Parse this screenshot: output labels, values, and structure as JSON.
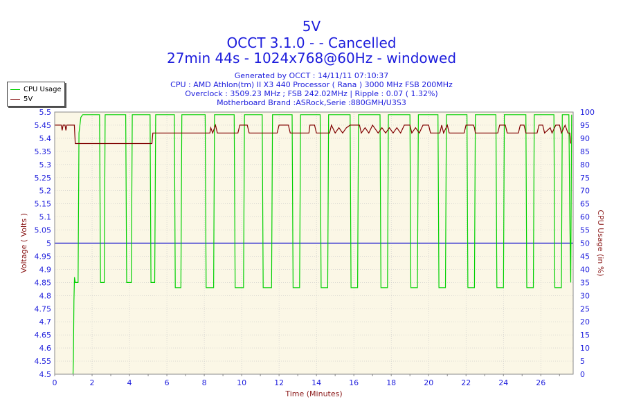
{
  "header": {
    "title": "5V",
    "subtitle1": "OCCT 3.1.0 -  - Cancelled",
    "subtitle2": "27min 44s - 1024x768@60Hz - windowed",
    "info": [
      "Generated by OCCT : 14/11/11 07:10:37",
      "CPU : AMD Athlon(tm) II X3 440 Processor ( Rana ) 3000 MHz FSB 200MHz",
      "Overclock : 3509.23 MHz ; FSB 242.02MHz | Ripple : 0.07 ( 1.32%)",
      "Motherboard Brand :ASRock,Serie :880GMH/U3S3"
    ]
  },
  "legend": [
    {
      "label": "CPU Usage",
      "color": "#00d000"
    },
    {
      "label": "5V",
      "color": "#800000"
    }
  ],
  "chart_data": {
    "type": "line",
    "xlabel": "Time (Minutes)",
    "ylabel": "Voltage ( Volts )",
    "y2label": "CPU Usage (in %)",
    "xlim": [
      0,
      27.73
    ],
    "ylim": [
      4.5,
      5.5
    ],
    "y2lim": [
      0,
      100
    ],
    "x_ticks": [
      "0",
      "2",
      "4",
      "6",
      "8",
      "10",
      "12",
      "14",
      "16",
      "18",
      "20",
      "22",
      "24",
      "26"
    ],
    "y_ticks": [
      "4.5",
      "4.55",
      "4.6",
      "4.65",
      "4.7",
      "4.75",
      "4.8",
      "4.85",
      "4.9",
      "4.95",
      "5",
      "5.05",
      "5.1",
      "5.15",
      "5.2",
      "5.25",
      "5.3",
      "5.35",
      "5.4",
      "5.45",
      "5.5"
    ],
    "y2_ticks": [
      "0",
      "5",
      "10",
      "15",
      "20",
      "25",
      "30",
      "35",
      "40",
      "45",
      "50",
      "55",
      "60",
      "65",
      "70",
      "75",
      "80",
      "85",
      "90",
      "95",
      "100"
    ],
    "reference_line": {
      "y": 5.0,
      "color": "#0000cc"
    },
    "grid": true,
    "legend_position": "top-left",
    "background_color": "#fbf7e6",
    "colors": {
      "cpu": "#00d000",
      "voltage": "#800000",
      "text": "#1c1cdc",
      "axis_label": "#8b1a1a"
    },
    "series": [
      {
        "name": "5V",
        "axis": "left",
        "points": [
          [
            0,
            5.45
          ],
          [
            0.35,
            5.45
          ],
          [
            0.4,
            5.43
          ],
          [
            0.45,
            5.45
          ],
          [
            0.55,
            5.45
          ],
          [
            0.6,
            5.43
          ],
          [
            0.65,
            5.45
          ],
          [
            1.05,
            5.45
          ],
          [
            1.1,
            5.38
          ],
          [
            5.2,
            5.38
          ],
          [
            5.25,
            5.42
          ],
          [
            8.3,
            5.42
          ],
          [
            8.35,
            5.44
          ],
          [
            8.45,
            5.42
          ],
          [
            8.6,
            5.45
          ],
          [
            8.7,
            5.42
          ],
          [
            9.8,
            5.42
          ],
          [
            9.9,
            5.45
          ],
          [
            10.3,
            5.45
          ],
          [
            10.4,
            5.42
          ],
          [
            11.9,
            5.42
          ],
          [
            12.0,
            5.45
          ],
          [
            12.5,
            5.45
          ],
          [
            12.6,
            5.42
          ],
          [
            13.6,
            5.42
          ],
          [
            13.65,
            5.45
          ],
          [
            13.9,
            5.45
          ],
          [
            14.0,
            5.42
          ],
          [
            14.7,
            5.42
          ],
          [
            14.8,
            5.45
          ],
          [
            15.0,
            5.42
          ],
          [
            15.2,
            5.44
          ],
          [
            15.4,
            5.42
          ],
          [
            15.6,
            5.44
          ],
          [
            15.8,
            5.45
          ],
          [
            16.3,
            5.45
          ],
          [
            16.4,
            5.42
          ],
          [
            16.6,
            5.44
          ],
          [
            16.8,
            5.42
          ],
          [
            17.0,
            5.45
          ],
          [
            17.3,
            5.42
          ],
          [
            17.5,
            5.44
          ],
          [
            17.7,
            5.42
          ],
          [
            17.9,
            5.44
          ],
          [
            18.1,
            5.42
          ],
          [
            18.3,
            5.44
          ],
          [
            18.5,
            5.42
          ],
          [
            18.7,
            5.45
          ],
          [
            19.0,
            5.45
          ],
          [
            19.1,
            5.42
          ],
          [
            19.3,
            5.44
          ],
          [
            19.5,
            5.42
          ],
          [
            19.7,
            5.45
          ],
          [
            20.0,
            5.45
          ],
          [
            20.1,
            5.42
          ],
          [
            20.6,
            5.42
          ],
          [
            20.7,
            5.45
          ],
          [
            20.8,
            5.42
          ],
          [
            21.0,
            5.45
          ],
          [
            21.1,
            5.42
          ],
          [
            21.9,
            5.42
          ],
          [
            22.0,
            5.45
          ],
          [
            22.4,
            5.45
          ],
          [
            22.45,
            5.44
          ],
          [
            22.5,
            5.42
          ],
          [
            23.7,
            5.42
          ],
          [
            23.8,
            5.45
          ],
          [
            24.1,
            5.45
          ],
          [
            24.2,
            5.42
          ],
          [
            24.8,
            5.42
          ],
          [
            24.9,
            5.45
          ],
          [
            25.1,
            5.45
          ],
          [
            25.2,
            5.42
          ],
          [
            25.8,
            5.42
          ],
          [
            25.9,
            5.45
          ],
          [
            26.1,
            5.45
          ],
          [
            26.2,
            5.42
          ],
          [
            26.5,
            5.44
          ],
          [
            26.6,
            5.42
          ],
          [
            26.8,
            5.45
          ],
          [
            27.0,
            5.45
          ],
          [
            27.1,
            5.42
          ],
          [
            27.3,
            5.45
          ],
          [
            27.45,
            5.42
          ],
          [
            27.55,
            5.42
          ],
          [
            27.6,
            5.38
          ]
        ]
      },
      {
        "name": "CPU Usage",
        "axis": "right",
        "points": [
          [
            0.98,
            0
          ],
          [
            1.0,
            5
          ],
          [
            1.03,
            28
          ],
          [
            1.06,
            37
          ],
          [
            1.1,
            35
          ],
          [
            1.2,
            35
          ],
          [
            1.25,
            35
          ],
          [
            1.3,
            92
          ],
          [
            1.4,
            98
          ],
          [
            1.5,
            99
          ],
          [
            2.1,
            99
          ],
          [
            2.2,
            99
          ],
          [
            2.4,
            99
          ],
          [
            2.45,
            35
          ],
          [
            2.65,
            35
          ],
          [
            2.7,
            99
          ],
          [
            3.3,
            99
          ],
          [
            3.35,
            99
          ],
          [
            3.8,
            99
          ],
          [
            3.85,
            35
          ],
          [
            4.1,
            35
          ],
          [
            4.15,
            99
          ],
          [
            4.8,
            99
          ],
          [
            4.85,
            99
          ],
          [
            5.1,
            99
          ],
          [
            5.15,
            35
          ],
          [
            5.35,
            35
          ],
          [
            5.4,
            99
          ],
          [
            5.9,
            99
          ],
          [
            5.95,
            99
          ],
          [
            6.4,
            99
          ],
          [
            6.45,
            33
          ],
          [
            6.75,
            33
          ],
          [
            6.8,
            99
          ],
          [
            7.5,
            99
          ],
          [
            8.05,
            99
          ],
          [
            8.1,
            33
          ],
          [
            8.5,
            33
          ],
          [
            8.55,
            99
          ],
          [
            8.9,
            99
          ],
          [
            9.1,
            99
          ],
          [
            9.6,
            99
          ],
          [
            9.65,
            33
          ],
          [
            10.1,
            33
          ],
          [
            10.15,
            99
          ],
          [
            10.8,
            99
          ],
          [
            10.85,
            99
          ],
          [
            11.1,
            99
          ],
          [
            11.15,
            33
          ],
          [
            11.6,
            33
          ],
          [
            11.65,
            99
          ],
          [
            12.3,
            99
          ],
          [
            12.7,
            99
          ],
          [
            12.75,
            33
          ],
          [
            13.1,
            33
          ],
          [
            13.15,
            99
          ],
          [
            14.0,
            99
          ],
          [
            14.2,
            99
          ],
          [
            14.25,
            33
          ],
          [
            14.6,
            33
          ],
          [
            14.65,
            99
          ],
          [
            15.3,
            99
          ],
          [
            15.8,
            99
          ],
          [
            15.85,
            33
          ],
          [
            16.2,
            33
          ],
          [
            16.25,
            99
          ],
          [
            17.0,
            99
          ],
          [
            17.4,
            99
          ],
          [
            17.45,
            33
          ],
          [
            17.8,
            33
          ],
          [
            17.85,
            99
          ],
          [
            18.6,
            99
          ],
          [
            19.0,
            99
          ],
          [
            19.05,
            33
          ],
          [
            19.4,
            33
          ],
          [
            19.45,
            99
          ],
          [
            20.1,
            99
          ],
          [
            20.5,
            99
          ],
          [
            20.55,
            33
          ],
          [
            20.9,
            33
          ],
          [
            20.95,
            99
          ],
          [
            21.6,
            99
          ],
          [
            22.05,
            99
          ],
          [
            22.1,
            33
          ],
          [
            22.45,
            33
          ],
          [
            22.5,
            99
          ],
          [
            23.2,
            99
          ],
          [
            23.6,
            99
          ],
          [
            23.65,
            33
          ],
          [
            24.0,
            33
          ],
          [
            24.05,
            99
          ],
          [
            24.7,
            99
          ],
          [
            25.2,
            99
          ],
          [
            25.25,
            33
          ],
          [
            25.6,
            33
          ],
          [
            25.65,
            99
          ],
          [
            26.3,
            99
          ],
          [
            26.7,
            99
          ],
          [
            26.75,
            33
          ],
          [
            27.1,
            33
          ],
          [
            27.15,
            99
          ],
          [
            27.5,
            99
          ],
          [
            27.55,
            60
          ],
          [
            27.6,
            35
          ],
          [
            27.65,
            99
          ]
        ]
      }
    ]
  }
}
